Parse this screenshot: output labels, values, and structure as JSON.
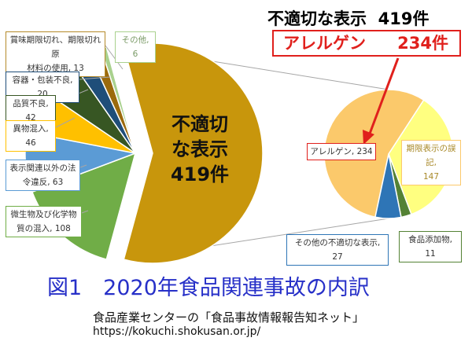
{
  "header": {
    "total_label": "不適切な表示",
    "total_value": "419件",
    "allergen_label": "アレルゲン",
    "allergen_value": "234件"
  },
  "figure": {
    "title": "図1　2020年食品関連事故の内訳",
    "source_line1": "食品産業センターの「食品事故情報報告知ネット」",
    "source_line2": "https://kokuchi.shokusan.or.jp/"
  },
  "center_label": {
    "line1": "不適切",
    "line2": "な表示",
    "line3": "419件"
  },
  "colors": {
    "improper": "#c8960c",
    "allergen": "#fbc96b",
    "expiry": "#ffff80",
    "food_additive": "#548235",
    "other_improper": "#2e75b6",
    "microbe": "#70ad47",
    "display_law": "#5b9bd5",
    "foreign": "#ffc000",
    "quality": "#375623",
    "container": "#1f4e79",
    "expired_ingredient": "#9b6a0c",
    "other": "#a9d18e",
    "accent_red": "#e0201c"
  },
  "chart_data": [
    {
      "type": "pie",
      "series": [
        {
          "label": "不適切な表示",
          "display": "不適切\nな表示\n419件",
          "value": 419,
          "color_key": "improper"
        },
        {
          "label": "微生物及び化学物質の混入",
          "display": "微生物及び化学物質の混入, 108",
          "value": 108,
          "color_key": "microbe"
        },
        {
          "label": "表示関連以外の法令違反",
          "display": "表示関連以外の法令違反, 63",
          "value": 63,
          "color_key": "display_law"
        },
        {
          "label": "異物混入",
          "display": "異物混入, 46",
          "value": 46,
          "color_key": "foreign"
        },
        {
          "label": "品質不良",
          "display": "品質不良, 42",
          "value": 42,
          "color_key": "quality"
        },
        {
          "label": "容器・包装不良",
          "display": "容器・包装不良, 20",
          "value": 20,
          "color_key": "container"
        },
        {
          "label": "賞味期限切れ、期限切れ原材料の使用",
          "display": "賞味期限切れ、期限切れ原材料の使用, 13",
          "value": 13,
          "color_key": "expired_ingredient"
        },
        {
          "label": "その他",
          "display": "その他, 6",
          "value": 6,
          "color_key": "other"
        }
      ]
    },
    {
      "type": "pie",
      "series": [
        {
          "label": "アレルゲン",
          "display": "アレルゲン, 234",
          "value": 234,
          "color_key": "allergen"
        },
        {
          "label": "期限表示の誤記",
          "display": "期限表示の誤記, 147",
          "value": 147,
          "color_key": "expiry"
        },
        {
          "label": "食品添加物",
          "display": "食品添加物, 11",
          "value": 11,
          "color_key": "food_additive"
        },
        {
          "label": "その他の不適切な表示",
          "display": "その他の不適切な表示, 27",
          "value": 27,
          "color_key": "other_improper"
        }
      ]
    }
  ]
}
